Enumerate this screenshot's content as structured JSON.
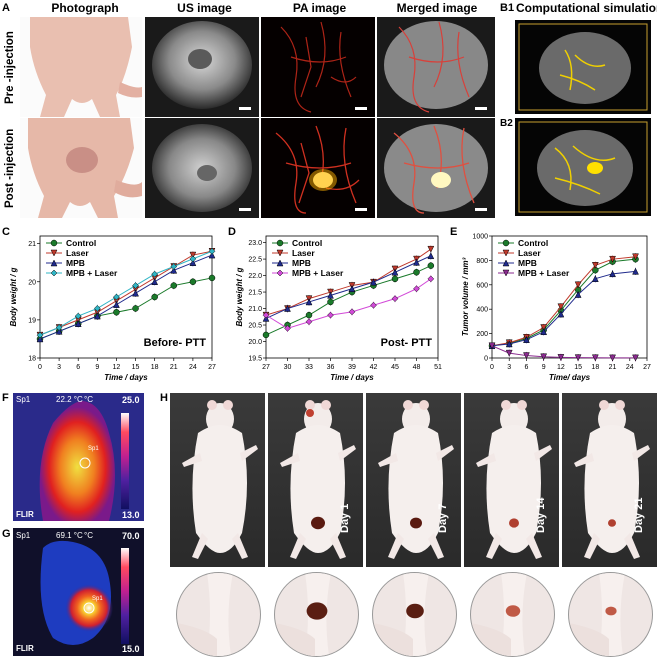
{
  "panel_a": {
    "label": "A",
    "columns": [
      "Photograph",
      "US image",
      "PA image",
      "Merged image"
    ],
    "rows": [
      "Pre -injection",
      "Post -injection"
    ]
  },
  "panel_b": {
    "label": "B1",
    "title": "Computational simulation",
    "sub1": "B1",
    "sub2": "B2"
  },
  "chart_data": [
    {
      "panel": "C",
      "type": "line",
      "xlabel": "Time / days",
      "ylabel": "Body weight / g",
      "annotation": "Before- PTT",
      "xlim": [
        0,
        27
      ],
      "ylim": [
        18,
        21.2
      ],
      "xticks": [
        "0",
        "3",
        "6",
        "9",
        "12",
        "15",
        "18",
        "21",
        "24",
        "27"
      ],
      "yticks": [
        "18",
        "19",
        "20",
        "21"
      ],
      "x": [
        0,
        3,
        6,
        9,
        12,
        15,
        18,
        21,
        24,
        27
      ],
      "series": [
        {
          "name": "Control",
          "color": "#1a7a2a",
          "marker": "circle",
          "values": [
            18.5,
            18.7,
            18.9,
            19.1,
            19.2,
            19.3,
            19.6,
            19.9,
            20.0,
            20.1
          ]
        },
        {
          "name": "Laser",
          "color": "#c0392b",
          "marker": "tri-down",
          "values": [
            18.6,
            18.8,
            19.0,
            19.2,
            19.5,
            19.8,
            20.1,
            20.4,
            20.7,
            20.8
          ]
        },
        {
          "name": "MPB",
          "color": "#1f2a8c",
          "marker": "tri-up",
          "values": [
            18.5,
            18.7,
            18.9,
            19.1,
            19.4,
            19.7,
            20.0,
            20.3,
            20.5,
            20.7
          ]
        },
        {
          "name": "MPB + Laser",
          "color": "#2fb5c5",
          "marker": "diamond",
          "values": [
            18.6,
            18.8,
            19.1,
            19.3,
            19.6,
            19.9,
            20.2,
            20.4,
            20.6,
            20.8
          ]
        }
      ]
    },
    {
      "panel": "D",
      "type": "line",
      "xlabel": "Time / days",
      "ylabel": "Body weight / g",
      "annotation": "Post- PTT",
      "xlim": [
        27,
        51
      ],
      "ylim": [
        19.5,
        23.2
      ],
      "xticks": [
        "27",
        "30",
        "33",
        "36",
        "39",
        "42",
        "45",
        "48",
        "51"
      ],
      "yticks": [
        "19.5",
        "20.0",
        "20.5",
        "21.0",
        "21.5",
        "22.0",
        "22.5",
        "23.0"
      ],
      "x": [
        27,
        30,
        33,
        36,
        39,
        42,
        45,
        48,
        50
      ],
      "series": [
        {
          "name": "Control",
          "color": "#1a7a2a",
          "marker": "circle",
          "values": [
            20.2,
            20.5,
            20.8,
            21.2,
            21.5,
            21.7,
            21.9,
            22.1,
            22.3
          ]
        },
        {
          "name": "Laser",
          "color": "#c0392b",
          "marker": "tri-down",
          "values": [
            20.8,
            21.0,
            21.3,
            21.5,
            21.7,
            21.8,
            22.2,
            22.5,
            22.8
          ]
        },
        {
          "name": "MPB",
          "color": "#1f2a8c",
          "marker": "tri-up",
          "values": [
            20.7,
            21.0,
            21.2,
            21.4,
            21.6,
            21.8,
            22.1,
            22.4,
            22.6
          ]
        },
        {
          "name": "MPB + Laser",
          "color": "#d24ad8",
          "marker": "diamond",
          "values": [
            20.8,
            20.4,
            20.6,
            20.8,
            20.9,
            21.1,
            21.3,
            21.6,
            21.9
          ]
        }
      ]
    },
    {
      "panel": "E",
      "type": "line",
      "xlabel": "Time/ days",
      "ylabel": "Tumor volume / mm³",
      "xlim": [
        0,
        27
      ],
      "ylim": [
        0,
        1000
      ],
      "xticks": [
        "0",
        "3",
        "6",
        "9",
        "12",
        "15",
        "18",
        "21",
        "24",
        "27"
      ],
      "yticks": [
        "0",
        "200",
        "400",
        "600",
        "800",
        "1000"
      ],
      "x": [
        0,
        3,
        6,
        9,
        12,
        15,
        18,
        21,
        25
      ],
      "series": [
        {
          "name": "Control",
          "color": "#1a7a2a",
          "marker": "circle",
          "values": [
            100,
            120,
            160,
            230,
            390,
            560,
            720,
            790,
            810
          ]
        },
        {
          "name": "Laser",
          "color": "#c0392b",
          "marker": "tri-down",
          "values": [
            100,
            125,
            170,
            250,
            420,
            600,
            760,
            810,
            830
          ]
        },
        {
          "name": "MPB",
          "color": "#1f2a8c",
          "marker": "tri-up",
          "values": [
            100,
            115,
            150,
            215,
            360,
            520,
            650,
            690,
            710
          ]
        },
        {
          "name": "MPB + Laser",
          "color": "#8a2a8f",
          "marker": "tri-down",
          "values": [
            100,
            40,
            20,
            10,
            5,
            3,
            2,
            1,
            1
          ]
        }
      ]
    }
  ],
  "panel_f": {
    "label": "F",
    "spot": "Sp1",
    "reading": "22.2 °C",
    "unit": "°C",
    "max": "25.0",
    "min": "13.0",
    "brand": "FLIR"
  },
  "panel_g": {
    "label": "G",
    "spot": "Sp1",
    "reading": "69.1 °C",
    "unit": "°C",
    "max": "70.0",
    "min": "15.0",
    "brand": "FLIR"
  },
  "panel_h": {
    "label": "H",
    "days": [
      "",
      "Day 1",
      "Day 7",
      "Day 14",
      "Day 21"
    ]
  }
}
